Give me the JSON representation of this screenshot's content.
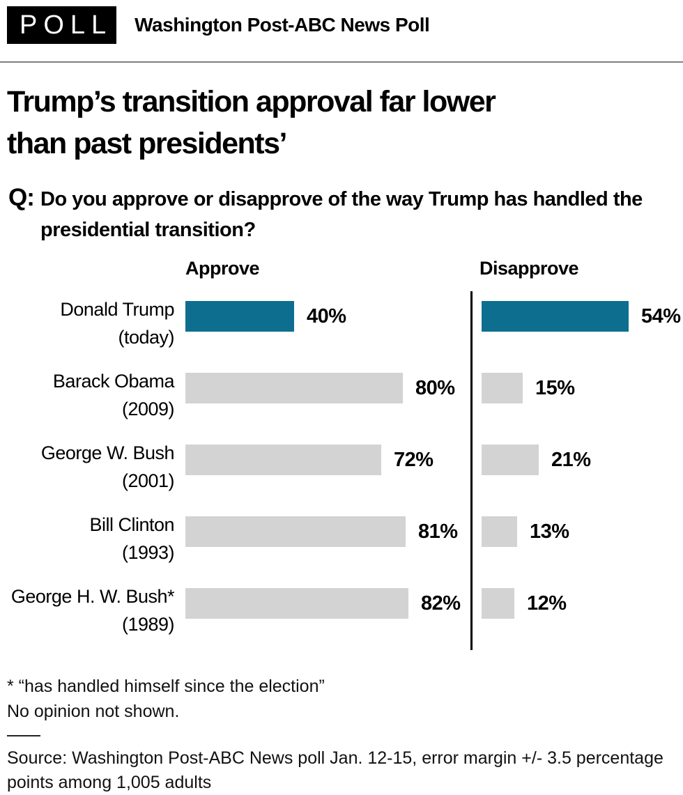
{
  "header": {
    "badge": "POLL",
    "title": "Washington Post-ABC News Poll"
  },
  "headline": {
    "line1": "Trump’s transition approval far lower",
    "line2": "than past presidents’"
  },
  "question": {
    "prefix": "Q:",
    "text": "Do you approve or disapprove of the way Trump has handled the presidential transition?"
  },
  "chart_data": {
    "type": "bar",
    "orientation": "horizontal",
    "title": "Trump’s transition approval far lower than past presidents’",
    "column_headers": {
      "approve": "Approve",
      "disapprove": "Disapprove"
    },
    "categories": [
      "Donald Trump (today)",
      "Barack Obama (2009)",
      "George W. Bush (2001)",
      "Bill Clinton (1993)",
      "George H. W. Bush* (1989)"
    ],
    "series": [
      {
        "name": "Approve",
        "values": [
          40,
          80,
          72,
          81,
          82
        ]
      },
      {
        "name": "Disapprove",
        "values": [
          54,
          15,
          21,
          13,
          12
        ]
      }
    ],
    "rows": [
      {
        "name": "Donald Trump",
        "year": "(today)",
        "approve": 40,
        "approve_label": "40%",
        "disapprove": 54,
        "disapprove_label": "54%",
        "highlight": true
      },
      {
        "name": "Barack Obama",
        "year": "(2009)",
        "approve": 80,
        "approve_label": "80%",
        "disapprove": 15,
        "disapprove_label": "15%",
        "highlight": false
      },
      {
        "name": "George W. Bush",
        "year": "(2001)",
        "approve": 72,
        "approve_label": "72%",
        "disapprove": 21,
        "disapprove_label": "21%",
        "highlight": false
      },
      {
        "name": "Bill Clinton",
        "year": "(1993)",
        "approve": 81,
        "approve_label": "81%",
        "disapprove": 13,
        "disapprove_label": "13%",
        "highlight": false
      },
      {
        "name": "George H. W. Bush*",
        "year": "(1989)",
        "approve": 82,
        "approve_label": "82%",
        "disapprove": 12,
        "disapprove_label": "12%",
        "highlight": false
      }
    ],
    "axis_range": [
      0,
      100
    ],
    "grid": false,
    "legend": "none",
    "colors": {
      "highlight_bar": "#0e6e90",
      "default_bar": "#d3d3d3",
      "divider": "#000000"
    }
  },
  "footnotes": {
    "asterisk_note": "* “has handled himself since the election”",
    "no_opinion_note": "No opinion not shown."
  },
  "source": "Source: Washington Post-ABC News poll Jan. 12-15, error margin +/- 3.5 percentage points among 1,005 adults"
}
